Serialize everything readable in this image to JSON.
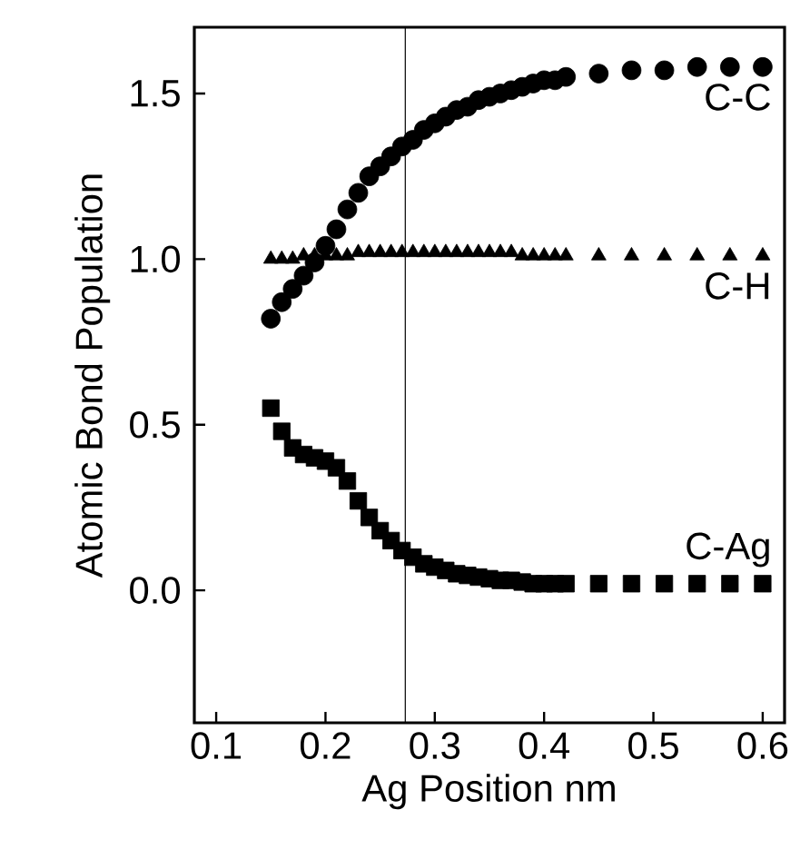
{
  "chart_data": {
    "type": "scatter",
    "xlabel": "Ag Position nm",
    "ylabel": "Atomic Bond Population",
    "xlim": [
      0.08,
      0.62
    ],
    "ylim": [
      -0.4,
      1.7
    ],
    "xticks": [
      0.1,
      0.2,
      0.3,
      0.4,
      0.5,
      0.6
    ],
    "yticks": [
      {
        "value": 0,
        "label": "0.0"
      },
      0.5,
      {
        "value": 1,
        "label": "1.0"
      },
      1.5
    ],
    "grid": false,
    "ref_lines": [
      {
        "axis": "x",
        "value": 0.273,
        "color": "#000000",
        "line_style": "solid"
      }
    ],
    "series": [
      {
        "name": "C-C",
        "color": "#000000",
        "marker": "circle",
        "x": [
          0.15,
          0.16,
          0.17,
          0.18,
          0.19,
          0.2,
          0.21,
          0.22,
          0.23,
          0.24,
          0.25,
          0.26,
          0.27,
          0.28,
          0.29,
          0.3,
          0.31,
          0.32,
          0.33,
          0.34,
          0.35,
          0.36,
          0.37,
          0.38,
          0.39,
          0.4,
          0.41,
          0.42,
          0.45,
          0.48,
          0.51,
          0.54,
          0.57,
          0.6
        ],
        "values": [
          0.82,
          0.87,
          0.91,
          0.95,
          0.99,
          1.04,
          1.09,
          1.15,
          1.2,
          1.25,
          1.28,
          1.31,
          1.34,
          1.36,
          1.39,
          1.41,
          1.43,
          1.45,
          1.46,
          1.48,
          1.49,
          1.5,
          1.51,
          1.52,
          1.53,
          1.54,
          1.54,
          1.55,
          1.56,
          1.57,
          1.57,
          1.58,
          1.58,
          1.58
        ]
      },
      {
        "name": "C-H",
        "color": "#000000",
        "marker": "triangle",
        "x": [
          0.15,
          0.16,
          0.17,
          0.18,
          0.19,
          0.2,
          0.21,
          0.22,
          0.23,
          0.24,
          0.25,
          0.26,
          0.27,
          0.28,
          0.29,
          0.3,
          0.31,
          0.32,
          0.33,
          0.34,
          0.35,
          0.36,
          0.37,
          0.38,
          0.39,
          0.4,
          0.41,
          0.42,
          0.45,
          0.48,
          0.51,
          0.54,
          0.57,
          0.6
        ],
        "values": [
          1.0,
          1.0,
          1.0,
          1.01,
          1.01,
          1.01,
          1.01,
          1.01,
          1.02,
          1.02,
          1.02,
          1.02,
          1.02,
          1.02,
          1.02,
          1.02,
          1.02,
          1.02,
          1.02,
          1.02,
          1.02,
          1.02,
          1.02,
          1.01,
          1.01,
          1.01,
          1.01,
          1.01,
          1.01,
          1.01,
          1.01,
          1.01,
          1.01,
          1.01
        ]
      },
      {
        "name": "C-Ag",
        "color": "#000000",
        "marker": "square",
        "x": [
          0.15,
          0.16,
          0.17,
          0.18,
          0.19,
          0.2,
          0.21,
          0.22,
          0.23,
          0.24,
          0.25,
          0.26,
          0.27,
          0.28,
          0.29,
          0.3,
          0.31,
          0.32,
          0.33,
          0.34,
          0.35,
          0.36,
          0.37,
          0.38,
          0.39,
          0.4,
          0.41,
          0.42,
          0.45,
          0.48,
          0.51,
          0.54,
          0.57,
          0.6
        ],
        "values": [
          0.55,
          0.48,
          0.43,
          0.41,
          0.4,
          0.39,
          0.37,
          0.33,
          0.27,
          0.22,
          0.18,
          0.15,
          0.12,
          0.1,
          0.08,
          0.07,
          0.06,
          0.05,
          0.045,
          0.04,
          0.035,
          0.03,
          0.03,
          0.025,
          0.02,
          0.02,
          0.02,
          0.02,
          0.02,
          0.02,
          0.02,
          0.02,
          0.02,
          0.02
        ]
      }
    ]
  }
}
